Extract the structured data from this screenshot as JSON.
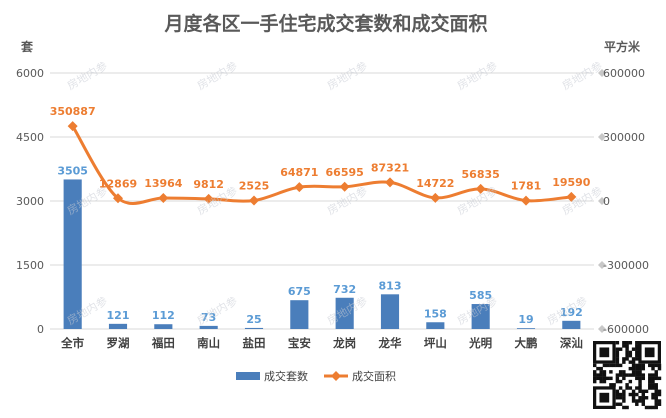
{
  "chart_data": {
    "type": "bar+line",
    "title": "月度各区一手住宅成交套数和成交面积",
    "left_axis_unit": "套",
    "right_axis_unit": "平方米",
    "categories": [
      "全市",
      "罗湖",
      "福田",
      "南山",
      "盐田",
      "宝安",
      "龙岗",
      "龙华",
      "坪山",
      "光明",
      "大鹏",
      "深汕"
    ],
    "series": [
      {
        "name": "成交套数",
        "type": "bar",
        "axis": "left",
        "values": [
          3505,
          121,
          112,
          73,
          25,
          675,
          732,
          813,
          158,
          585,
          19,
          192
        ]
      },
      {
        "name": "成交面积",
        "type": "line",
        "axis": "right",
        "values": [
          350887,
          12869,
          13964,
          9812,
          2525,
          64871,
          66595,
          87321,
          14722,
          56835,
          1781,
          19590
        ]
      }
    ],
    "left_axis": {
      "min": 0,
      "max": 6000,
      "ticks": [
        "0",
        "1500",
        "3000",
        "4500",
        "6000"
      ]
    },
    "right_axis": {
      "min": -600000,
      "max": 600000,
      "ticks": [
        "-600000",
        "-300000",
        "0",
        "300000",
        "600000"
      ]
    },
    "gridlines": true,
    "legend_position": "bottom",
    "colors": {
      "bar": "#4A7EBB",
      "line": "#ED7D31",
      "grid": "#D9D9D9"
    },
    "watermark_text": "房地内参"
  }
}
